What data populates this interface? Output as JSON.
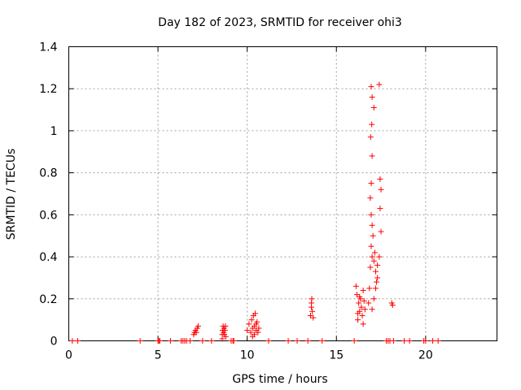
{
  "chart_data": {
    "type": "scatter",
    "title": "Day 182 of 2023, SRMTID for receiver ohi3",
    "xlabel": "GPS time / hours",
    "ylabel": "SRMTID / TECUs",
    "xlim": [
      0,
      24
    ],
    "ylim": [
      0,
      1.4
    ],
    "xticks": [
      0,
      5,
      10,
      15,
      20
    ],
    "yticks": [
      0,
      0.2,
      0.4,
      0.6,
      0.8,
      1,
      1.2,
      1.4
    ],
    "xtick_labels": [
      "0",
      "5",
      "10",
      "15",
      "20"
    ],
    "ytick_labels": [
      "0",
      "0.2",
      "0.4",
      "0.6",
      "0.8",
      "1",
      "1.2",
      "1.4"
    ],
    "grid": true,
    "marker": "+",
    "color": "#ff0000",
    "series": [
      {
        "name": "SRMTID",
        "x": [
          0.2,
          0.5,
          4.0,
          5.0,
          5.05,
          5.1,
          5.7,
          6.3,
          6.4,
          6.5,
          6.6,
          6.8,
          7.0,
          7.05,
          7.1,
          7.15,
          7.2,
          7.25,
          7.5,
          8.0,
          8.6,
          8.62,
          8.65,
          8.68,
          8.7,
          8.72,
          8.75,
          8.78,
          8.6,
          8.8,
          9.1,
          9.2,
          9.25,
          10.0,
          10.1,
          10.2,
          10.25,
          10.3,
          10.35,
          10.4,
          10.45,
          10.5,
          10.55,
          10.6,
          10.65,
          10.3,
          10.4,
          10.5,
          11.2,
          12.3,
          12.8,
          13.4,
          13.55,
          13.6,
          13.62,
          13.65,
          13.7,
          13.6,
          14.2,
          16.0,
          16.1,
          16.15,
          16.2,
          16.25,
          16.3,
          16.35,
          16.4,
          16.45,
          16.5,
          16.55,
          16.6,
          16.5,
          16.3,
          16.2,
          16.8,
          16.85,
          16.9,
          16.95,
          17.0,
          17.05,
          17.1,
          17.15,
          17.2,
          17.25,
          17.3,
          17.0,
          16.95,
          16.9,
          16.95,
          17.0,
          16.92,
          16.98,
          17.1,
          17.0,
          16.95,
          17.4,
          17.45,
          17.5,
          17.45,
          17.5,
          17.4,
          17.3,
          17.2,
          17.1,
          17.0,
          18.1,
          18.15,
          17.8,
          17.9,
          18.0,
          18.2,
          18.8,
          19.1,
          19.9,
          20.0,
          20.4,
          20.7
        ],
        "y": [
          0.0,
          0.0,
          0.0,
          0.0,
          0.0,
          0.0,
          0.0,
          0.0,
          0.0,
          0.0,
          0.0,
          0.0,
          0.03,
          0.04,
          0.05,
          0.04,
          0.06,
          0.07,
          0.0,
          0.0,
          0.03,
          0.05,
          0.07,
          0.04,
          0.06,
          0.03,
          0.05,
          0.07,
          0.01,
          0.02,
          0.0,
          0.0,
          0.0,
          0.05,
          0.08,
          0.04,
          0.1,
          0.06,
          0.12,
          0.07,
          0.13,
          0.05,
          0.09,
          0.04,
          0.06,
          0.02,
          0.03,
          0.08,
          0.0,
          0.0,
          0.0,
          0.0,
          0.12,
          0.16,
          0.2,
          0.14,
          0.11,
          0.18,
          0.0,
          0.0,
          0.26,
          0.22,
          0.1,
          0.18,
          0.14,
          0.2,
          0.16,
          0.12,
          0.24,
          0.19,
          0.15,
          0.08,
          0.21,
          0.13,
          0.18,
          0.25,
          0.35,
          0.45,
          0.4,
          0.5,
          0.38,
          0.42,
          0.33,
          0.28,
          0.36,
          0.55,
          0.6,
          0.68,
          0.75,
          0.88,
          0.97,
          1.03,
          1.11,
          1.16,
          1.21,
          1.22,
          0.77,
          0.72,
          0.63,
          0.52,
          0.4,
          0.3,
          0.25,
          0.2,
          0.15,
          0.18,
          0.17,
          0.0,
          0.0,
          0.0,
          0.0,
          0.0,
          0.0,
          0.0,
          0.0,
          0.0,
          0.0
        ]
      }
    ]
  }
}
